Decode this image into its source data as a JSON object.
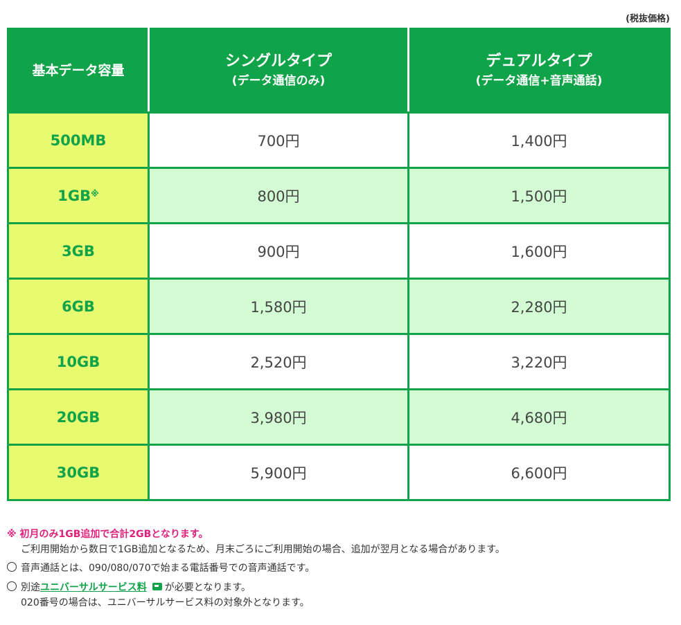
{
  "tax_note": "(税抜価格)",
  "table": {
    "headers": {
      "capacity": "基本データ容量",
      "single_main": "シングルタイプ",
      "single_sub": "(データ通信のみ)",
      "dual_main": "デュアルタイプ",
      "dual_sub": "(データ通信+音声通話)"
    },
    "rows": [
      {
        "capacity": "500MB",
        "mark": "",
        "single": "700円",
        "dual": "1,400円"
      },
      {
        "capacity": "1GB",
        "mark": "※",
        "single": "800円",
        "dual": "1,500円"
      },
      {
        "capacity": "3GB",
        "mark": "",
        "single": "900円",
        "dual": "1,600円"
      },
      {
        "capacity": "6GB",
        "mark": "",
        "single": "1,580円",
        "dual": "2,280円"
      },
      {
        "capacity": "10GB",
        "mark": "",
        "single": "2,520円",
        "dual": "3,220円"
      },
      {
        "capacity": "20GB",
        "mark": "",
        "single": "3,980円",
        "dual": "4,680円"
      },
      {
        "capacity": "30GB",
        "mark": "",
        "single": "5,900円",
        "dual": "6,600円"
      }
    ]
  },
  "notes": {
    "note1_title": "※ 初月のみ1GB追加で合計2GBとなります。",
    "note1_body": "ご利用開始から数日で1GB追加となるため、月末ごろにご利用開始の場合、追加が翌月となる場合があります。",
    "note2": "音声通話とは、090/080/070で始まる電話番号での音声通話です。",
    "note3_prefix": "別途",
    "note3_link": "ユニバーサルサービス料",
    "note3_suffix": "が必要となります。",
    "note3_body": "020番号の場合は、ユニバーサルサービス料の対象外となります。"
  },
  "colors": {
    "brand_green": "#11a349",
    "capacity_bg": "#e8fa70",
    "alt_row_bg": "#d4fcd4",
    "note_pink": "#e0217b"
  }
}
